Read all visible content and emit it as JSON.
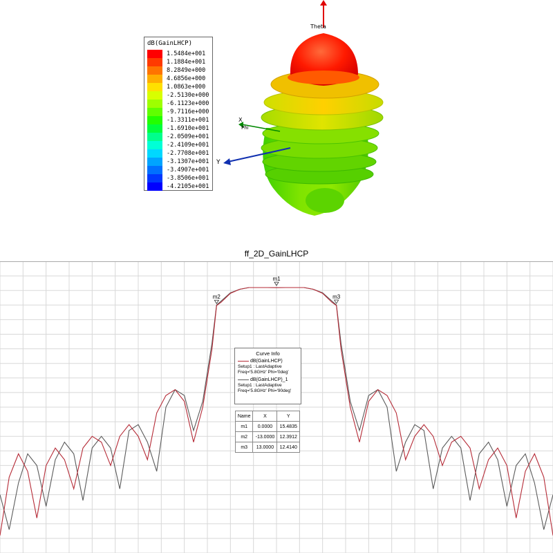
{
  "pattern3d": {
    "legend_title": "dB(GainLHCP)",
    "legend_values": [
      "1.5484e+001",
      "1.1884e+001",
      "8.2849e+000",
      "4.6856e+000",
      "1.0863e+000",
      "-2.5130e+000",
      "-6.1123e+000",
      "-9.7116e+000",
      "-1.3311e+001",
      "-1.6910e+001",
      "-2.0509e+001",
      "-2.4109e+001",
      "-2.7708e+001",
      "-3.1307e+001",
      "-3.4907e+001",
      "-3.8506e+001",
      "-4.2105e+001"
    ],
    "legend_colors": [
      "#ff0000",
      "#ff3a00",
      "#ff7400",
      "#ffae00",
      "#ffe000",
      "#d8ff00",
      "#9eff00",
      "#60ff00",
      "#22ff00",
      "#00ff3c",
      "#00ff8c",
      "#00ffd6",
      "#00d8ff",
      "#00a4ff",
      "#0070ff",
      "#0038ff",
      "#0000ff"
    ],
    "axis_labels": {
      "theta": "Theta",
      "x": "X",
      "phi": "Phi",
      "y": "Y"
    }
  },
  "chart_data": {
    "type": "line",
    "title": "ff_2D_GainLHCP",
    "xlim": [
      -60,
      60
    ],
    "ylim": [
      -30,
      20
    ],
    "grid": true,
    "series": [
      {
        "name": "dB(GainLHCP)",
        "sub1": "Setup1 : LastAdaptive",
        "sub2": "Freq='5.8GHz' Phi='0deg'",
        "color": "#b52a36",
        "x": [
          -60,
          -58,
          -56,
          -54,
          -52,
          -50,
          -48,
          -46,
          -44,
          -42,
          -40,
          -38,
          -36,
          -34,
          -32,
          -30,
          -28,
          -26,
          -24,
          -22,
          -20,
          -18,
          -16,
          -14,
          -13,
          -12,
          -10,
          -8,
          -6,
          -4,
          -2,
          0,
          2,
          4,
          6,
          8,
          10,
          12,
          13,
          14,
          16,
          18,
          20,
          22,
          24,
          26,
          28,
          30,
          32,
          34,
          36,
          38,
          40,
          42,
          44,
          46,
          48,
          50,
          52,
          54,
          56,
          58,
          60
        ],
        "y": [
          -27,
          -17,
          -13,
          -16,
          -24,
          -15,
          -12,
          -14,
          -19,
          -12,
          -10,
          -11,
          -15,
          -10,
          -8,
          -10,
          -14,
          -6,
          -3,
          -2,
          -4,
          -11,
          -5,
          5,
          12.4,
          13,
          14.5,
          15.2,
          15.5,
          15.5,
          15.5,
          15.48,
          15.5,
          15.5,
          15.5,
          15.2,
          14.5,
          13,
          12.41,
          5,
          -5,
          -11,
          -4,
          -2,
          -3,
          -6,
          -14,
          -10,
          -8,
          -10,
          -15,
          -11,
          -10,
          -12,
          -19,
          -14,
          -12,
          -15,
          -24,
          -16,
          -13,
          -17,
          -27
        ]
      },
      {
        "name": "dB(GainLHCP)_1",
        "sub1": "Setup1 : LastAdaptive",
        "sub2": "Freq='5.8GHz' Phi='90deg'",
        "color": "#5a5a5a",
        "x": [
          -60,
          -58,
          -56,
          -54,
          -52,
          -50,
          -48,
          -46,
          -44,
          -42,
          -40,
          -38,
          -36,
          -34,
          -32,
          -30,
          -28,
          -26,
          -24,
          -22,
          -20,
          -18,
          -16,
          -14,
          -13,
          -12,
          -10,
          -8,
          -6,
          -4,
          -2,
          0,
          2,
          4,
          6,
          8,
          10,
          12,
          13,
          14,
          16,
          18,
          20,
          22,
          24,
          26,
          28,
          30,
          32,
          34,
          36,
          38,
          40,
          42,
          44,
          46,
          48,
          50,
          52,
          54,
          56,
          58,
          60
        ],
        "y": [
          -20,
          -26,
          -18,
          -13,
          -15,
          -22,
          -14,
          -11,
          -13,
          -21,
          -12,
          -10,
          -12,
          -19,
          -9,
          -8,
          -11,
          -16,
          -5,
          -2,
          -3,
          -9,
          -4,
          6,
          12.5,
          13.2,
          14.6,
          15.2,
          15.5,
          15.5,
          15.5,
          15.48,
          15.5,
          15.5,
          15.5,
          15.2,
          14.6,
          13.2,
          12.5,
          6,
          -4,
          -9,
          -3,
          -2,
          -5,
          -16,
          -11,
          -8,
          -9,
          -19,
          -12,
          -10,
          -12,
          -21,
          -13,
          -11,
          -14,
          -22,
          -15,
          -13,
          -18,
          -26,
          -20
        ]
      }
    ],
    "markers": [
      {
        "name": "m1",
        "x": 0,
        "y": 15.4835
      },
      {
        "name": "m2",
        "x": -13,
        "y": 12.3912
      },
      {
        "name": "m3",
        "x": 13,
        "y": 12.414
      }
    ],
    "curve_info_title": "Curve Info",
    "marker_table": {
      "headers": [
        "Name",
        "X",
        "Y"
      ],
      "rows": [
        [
          "m1",
          "0.0000",
          "15.4835"
        ],
        [
          "m2",
          "-13.0000",
          "12.3912"
        ],
        [
          "m3",
          "13.0000",
          "12.4140"
        ]
      ]
    }
  }
}
